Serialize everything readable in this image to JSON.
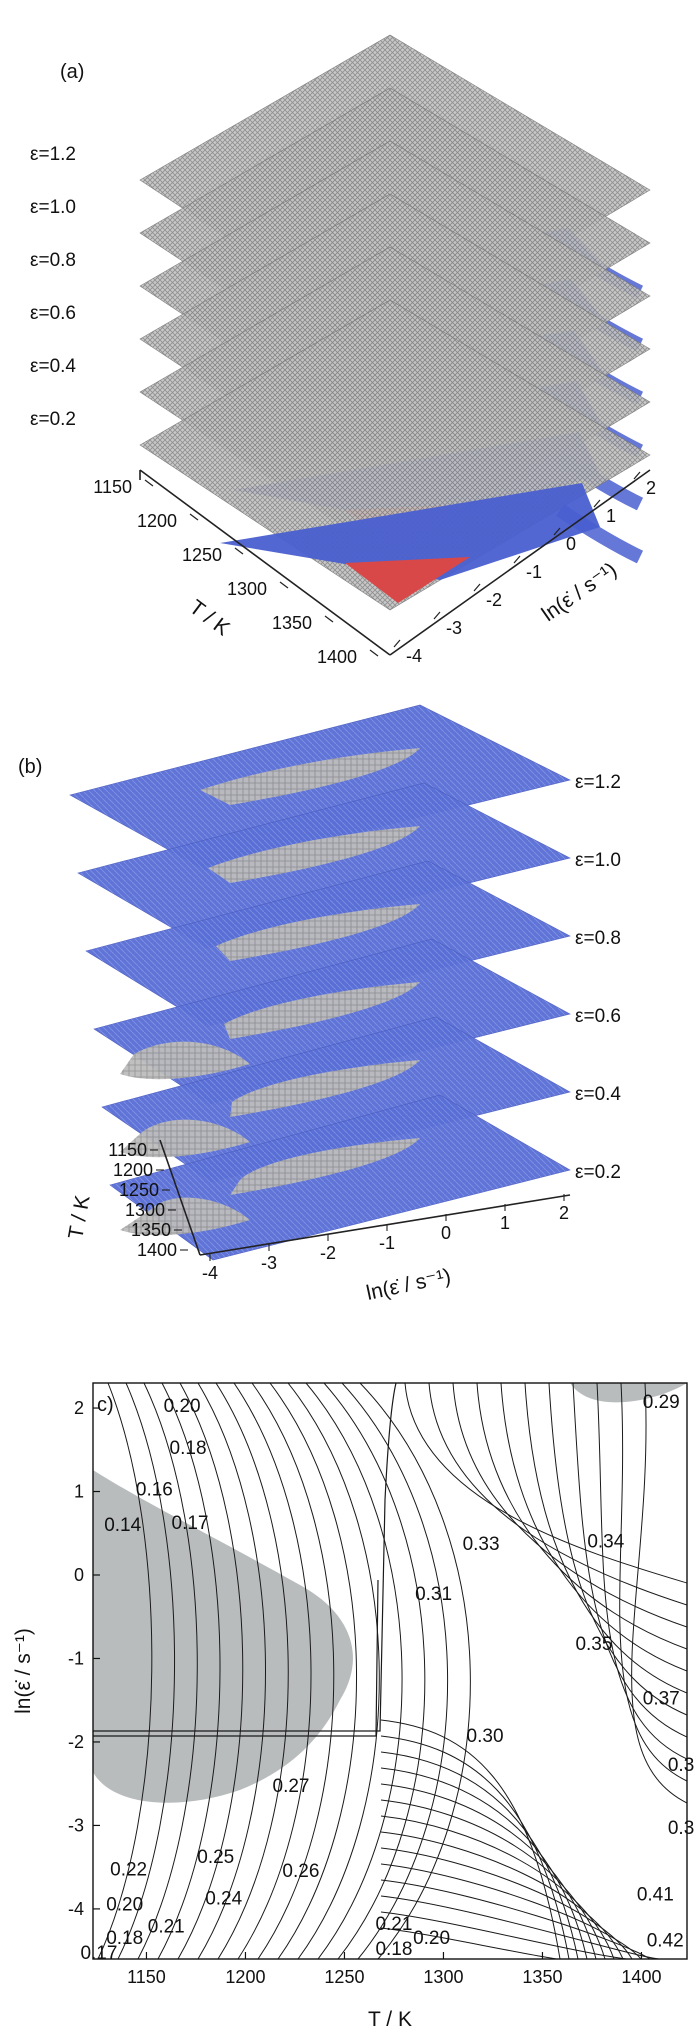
{
  "chart_data": [
    {
      "type": "heatmap",
      "panel_label": "(a)",
      "layers": [
        "ε=1.2",
        "ε=1.0",
        "ε=0.8",
        "ε=0.6",
        "ε=0.4",
        "ε=0.2"
      ],
      "temperature_ticks": [
        "1150",
        "1200",
        "1250",
        "1300",
        "1350",
        "1400"
      ],
      "strain_rate_ticks": [
        "-4",
        "-3",
        "-2",
        "-1",
        "0",
        "1",
        "2"
      ],
      "xlabel": "T / K",
      "ylabel": "ln(ε̇ / s⁻¹)",
      "colors": {
        "grid": "#a9a9a9",
        "blue": "#4a5fd0",
        "red": "#d94848"
      }
    },
    {
      "type": "heatmap",
      "panel_label": "(b)",
      "layers": [
        "ε=1.2",
        "ε=1.0",
        "ε=0.8",
        "ε=0.6",
        "ε=0.4",
        "ε=0.2"
      ],
      "temperature_ticks": [
        "1150",
        "1200",
        "1250",
        "1300",
        "1350",
        "1400"
      ],
      "strain_rate_ticks": [
        "-4",
        "-3",
        "-2",
        "-1",
        "0",
        "1",
        "2"
      ],
      "xlabel": "T / K",
      "ylabel": "ln(ε̇ / s⁻¹)",
      "colors": {
        "grid": "#a9a9a9",
        "blue": "#5a6fd6"
      }
    },
    {
      "type": "contour",
      "panel_label": "c)",
      "xlabel": "T / K",
      "ylabel": "ln(ε̇ / s⁻¹)",
      "xlim": [
        1123,
        1423
      ],
      "ylim": [
        -4.6,
        2.3
      ],
      "x_ticks": [
        "1150",
        "1200",
        "1250",
        "1300",
        "1350",
        "1400"
      ],
      "y_ticks": [
        "2",
        "1",
        "0",
        "-1",
        "-2",
        "-3",
        "-4"
      ],
      "contour_labels": [
        {
          "text": "0.20",
          "x": 1168,
          "y": 1.95
        },
        {
          "text": "0.18",
          "x": 1171,
          "y": 1.45
        },
        {
          "text": "0.16",
          "x": 1154,
          "y": 0.95
        },
        {
          "text": "0.14",
          "x": 1138,
          "y": 0.53
        },
        {
          "text": "0.17",
          "x": 1172,
          "y": 0.55
        },
        {
          "text": "0.33",
          "x": 1319,
          "y": 0.3
        },
        {
          "text": "0.34",
          "x": 1382,
          "y": 0.33
        },
        {
          "text": "0.31",
          "x": 1295,
          "y": -0.3
        },
        {
          "text": "0.35",
          "x": 1376,
          "y": -0.9
        },
        {
          "text": "0.37",
          "x": 1410,
          "y": -1.55
        },
        {
          "text": "0.30",
          "x": 1321,
          "y": -2.0
        },
        {
          "text": "0.3",
          "x": 1420,
          "y": -2.35
        },
        {
          "text": "0.27",
          "x": 1223,
          "y": -2.6
        },
        {
          "text": "0.3",
          "x": 1420,
          "y": -3.1
        },
        {
          "text": "0.25",
          "x": 1185,
          "y": -3.45
        },
        {
          "text": "0.26",
          "x": 1228,
          "y": -3.62
        },
        {
          "text": "0.22",
          "x": 1141,
          "y": -3.6
        },
        {
          "text": "0.24",
          "x": 1189,
          "y": -3.95
        },
        {
          "text": "0.20",
          "x": 1139,
          "y": -4.02
        },
        {
          "text": "0.41",
          "x": 1407,
          "y": -3.9
        },
        {
          "text": "0.21",
          "x": 1160,
          "y": -4.28
        },
        {
          "text": "0.21",
          "x": 1275,
          "y": -4.25
        },
        {
          "text": "0.18",
          "x": 1139,
          "y": -4.42
        },
        {
          "text": "0.20",
          "x": 1294,
          "y": -4.42
        },
        {
          "text": "0.18",
          "x": 1275,
          "y": -4.55
        },
        {
          "text": "0.17",
          "x": 1126,
          "y": -4.6
        },
        {
          "text": "0.42",
          "x": 1412,
          "y": -4.45
        },
        {
          "text": "0.29",
          "x": 1410,
          "y": 2.0
        }
      ],
      "colors": {
        "shade": "#b9bcbd",
        "line": "#1a1a1a"
      }
    }
  ]
}
